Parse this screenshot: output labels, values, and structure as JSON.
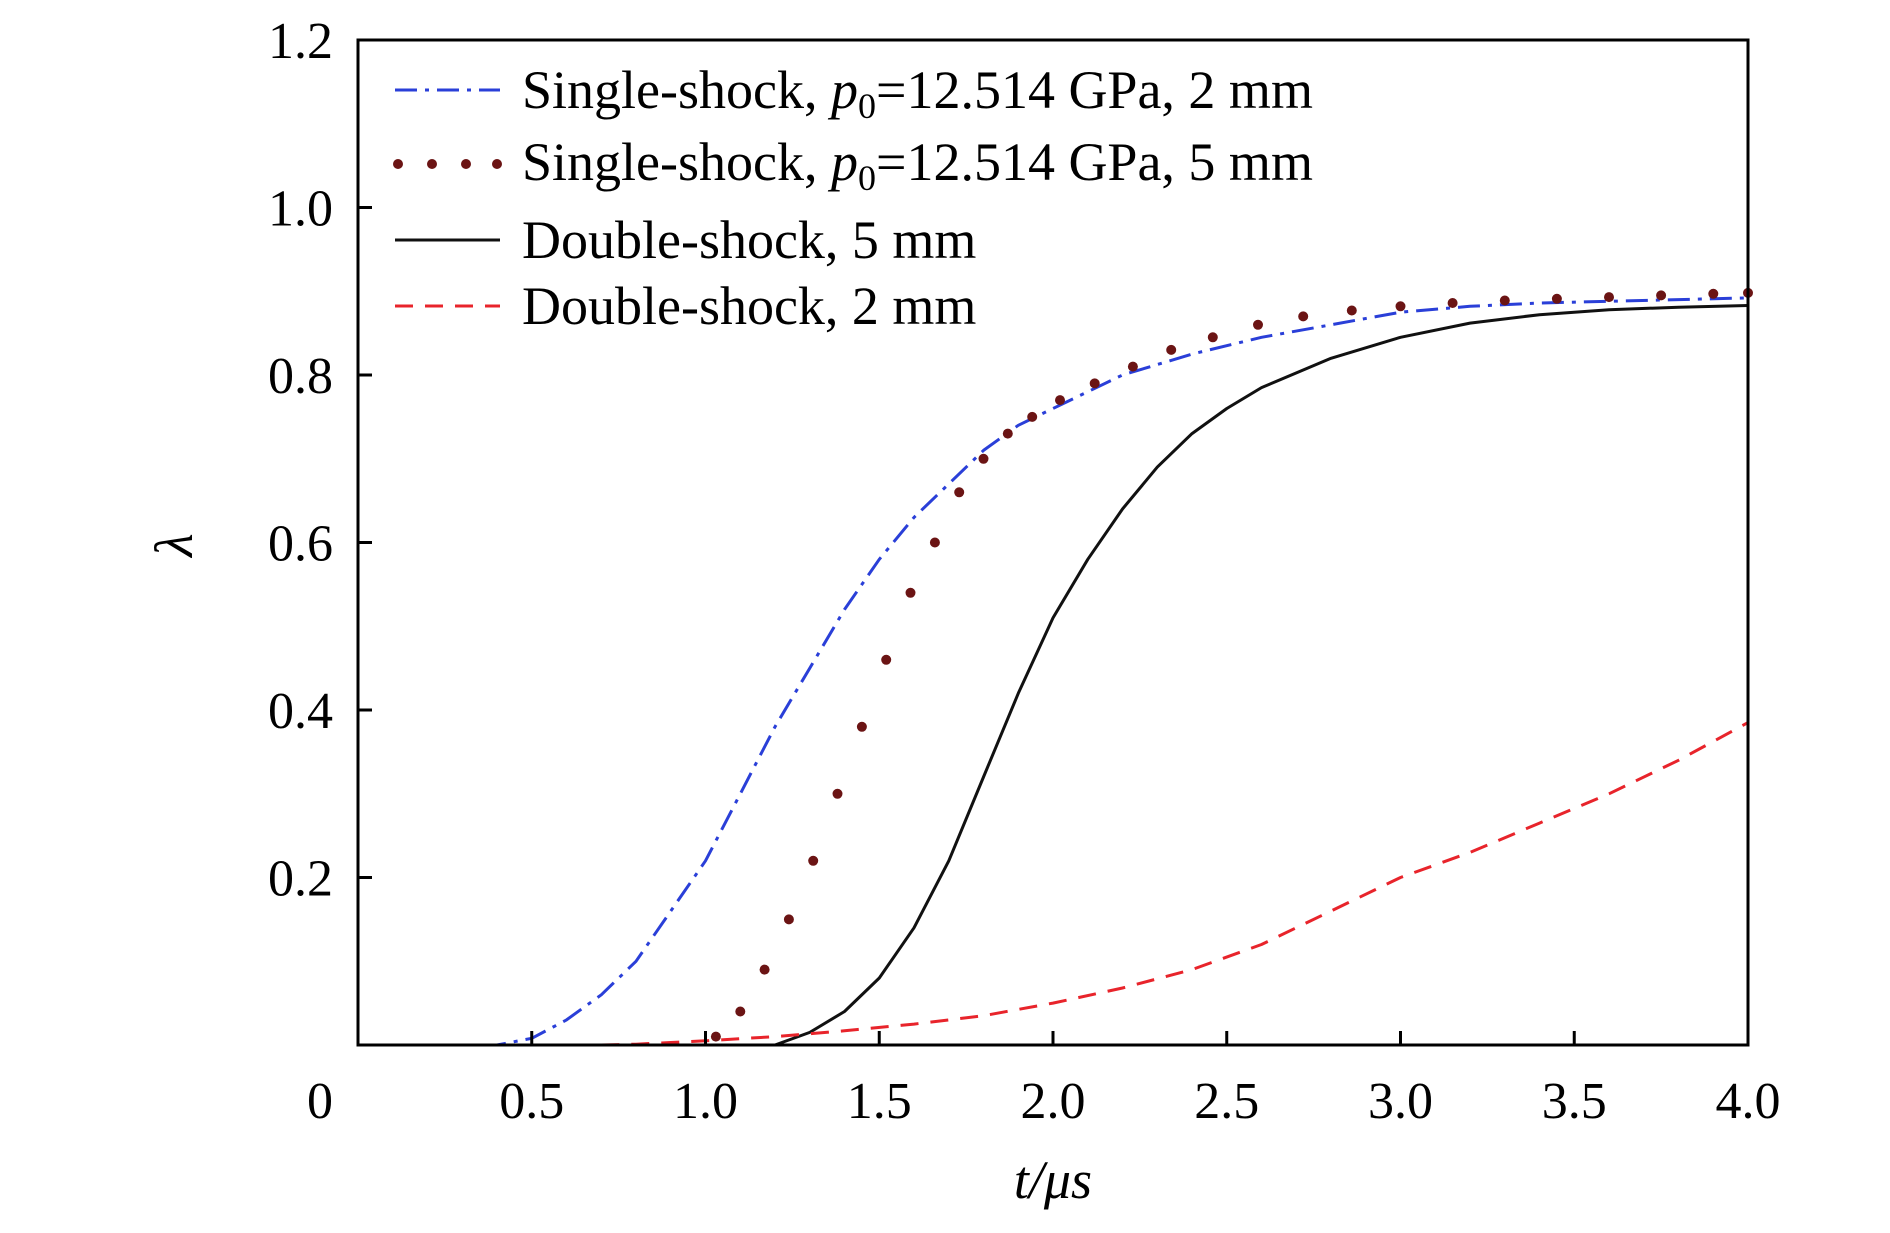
{
  "chart_data": {
    "type": "line",
    "title": "",
    "xlabel": "t/μs",
    "ylabel": "λ",
    "xlim": [
      0.0,
      4.0
    ],
    "ylim": [
      0.0,
      1.2
    ],
    "grid": false,
    "legend_position": "top-left",
    "x_ticks": [
      {
        "value": 0.0,
        "label": "0"
      },
      {
        "value": 0.5,
        "label": "0.5"
      },
      {
        "value": 1.0,
        "label": "1.0"
      },
      {
        "value": 1.5,
        "label": "1.5"
      },
      {
        "value": 2.0,
        "label": "2.0"
      },
      {
        "value": 2.5,
        "label": "2.5"
      },
      {
        "value": 3.0,
        "label": "3.0"
      },
      {
        "value": 3.5,
        "label": "3.5"
      },
      {
        "value": 4.0,
        "label": "4.0"
      }
    ],
    "y_ticks": [
      {
        "value": 0.2,
        "label": "0.2"
      },
      {
        "value": 0.4,
        "label": "0.4"
      },
      {
        "value": 0.6,
        "label": "0.6"
      },
      {
        "value": 0.8,
        "label": "0.8"
      },
      {
        "value": 1.0,
        "label": "1.0"
      },
      {
        "value": 1.2,
        "label": "1.2"
      }
    ],
    "series": [
      {
        "name": "Single-shock, p0=12.514 GPa, 2 mm",
        "legend_prefix": "Single-shock, ",
        "legend_var": "p",
        "legend_sub": "0",
        "legend_suffix": "=12.514 GPa, 2 mm",
        "color": "#2a3fd8",
        "style": "dashdot",
        "marker": "none",
        "x": [
          0.0,
          0.2,
          0.4,
          0.5,
          0.6,
          0.7,
          0.8,
          0.9,
          1.0,
          1.1,
          1.2,
          1.3,
          1.4,
          1.5,
          1.6,
          1.7,
          1.8,
          1.9,
          2.0,
          2.2,
          2.4,
          2.6,
          2.8,
          3.0,
          3.2,
          3.4,
          3.6,
          3.8,
          4.0
        ],
        "y": [
          0.0,
          0.0,
          0.0,
          0.008,
          0.03,
          0.06,
          0.1,
          0.16,
          0.22,
          0.3,
          0.38,
          0.45,
          0.52,
          0.58,
          0.63,
          0.67,
          0.71,
          0.74,
          0.76,
          0.8,
          0.825,
          0.845,
          0.86,
          0.875,
          0.882,
          0.886,
          0.888,
          0.89,
          0.892
        ]
      },
      {
        "name": "Single-shock, p0=12.514 GPa, 5 mm",
        "legend_prefix": "Single-shock, ",
        "legend_var": "p",
        "legend_sub": "0",
        "legend_suffix": "=12.514 GPa, 5 mm",
        "color": "#6b1414",
        "style": "dotted",
        "marker": "dot",
        "x": [
          1.03,
          1.1,
          1.17,
          1.24,
          1.31,
          1.38,
          1.45,
          1.52,
          1.59,
          1.66,
          1.73,
          1.8,
          1.87,
          1.94,
          2.02,
          2.12,
          2.23,
          2.34,
          2.46,
          2.59,
          2.72,
          2.86,
          3.0,
          3.15,
          3.3,
          3.45,
          3.6,
          3.75,
          3.9,
          4.0
        ],
        "y": [
          0.01,
          0.04,
          0.09,
          0.15,
          0.22,
          0.3,
          0.38,
          0.46,
          0.54,
          0.6,
          0.66,
          0.7,
          0.73,
          0.75,
          0.77,
          0.79,
          0.81,
          0.83,
          0.845,
          0.86,
          0.87,
          0.877,
          0.882,
          0.886,
          0.889,
          0.891,
          0.893,
          0.895,
          0.897,
          0.898
        ]
      },
      {
        "name": "Double-shock, 5 mm",
        "color": "#111111",
        "style": "solid",
        "marker": "none",
        "x": [
          1.2,
          1.3,
          1.4,
          1.5,
          1.6,
          1.7,
          1.8,
          1.9,
          2.0,
          2.1,
          2.2,
          2.3,
          2.4,
          2.5,
          2.6,
          2.8,
          3.0,
          3.2,
          3.4,
          3.6,
          3.8,
          4.0
        ],
        "y": [
          0.0,
          0.015,
          0.04,
          0.08,
          0.14,
          0.22,
          0.32,
          0.42,
          0.51,
          0.58,
          0.64,
          0.69,
          0.73,
          0.76,
          0.785,
          0.82,
          0.845,
          0.862,
          0.872,
          0.878,
          0.881,
          0.883
        ]
      },
      {
        "name": "Double-shock, 2 mm",
        "color": "#e8242b",
        "style": "dashed",
        "marker": "none",
        "x": [
          0.7,
          0.8,
          0.9,
          1.0,
          1.2,
          1.4,
          1.6,
          1.8,
          2.0,
          2.2,
          2.4,
          2.6,
          2.8,
          3.0,
          3.2,
          3.4,
          3.6,
          3.8,
          4.0
        ],
        "y": [
          0.0,
          0.001,
          0.003,
          0.005,
          0.01,
          0.017,
          0.025,
          0.035,
          0.05,
          0.068,
          0.09,
          0.12,
          0.16,
          0.2,
          0.23,
          0.265,
          0.3,
          0.34,
          0.385
        ]
      }
    ]
  }
}
